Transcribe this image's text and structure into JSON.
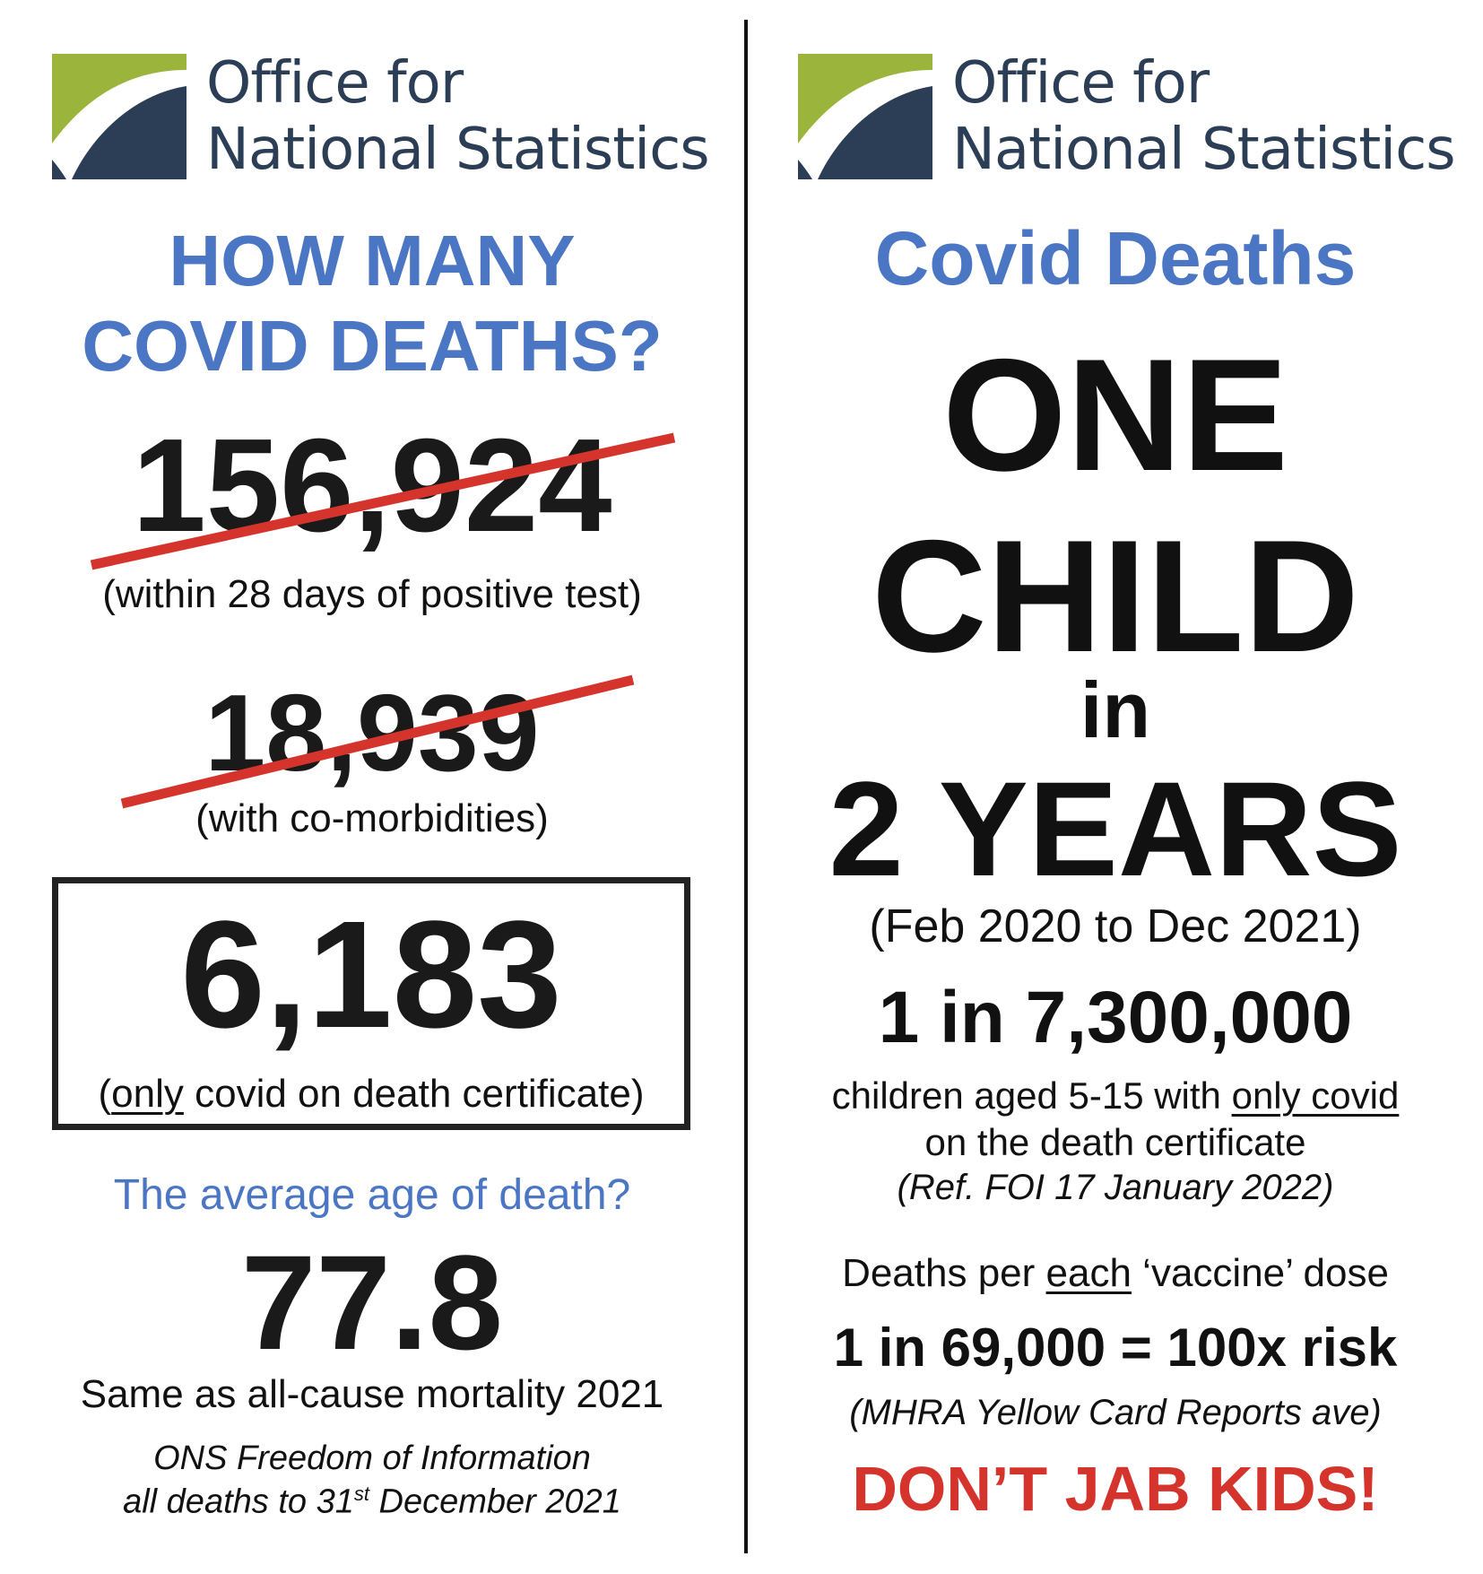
{
  "left": {
    "logo": {
      "line1": "Office for",
      "line2": "National Statistics"
    },
    "question_line1": "HOW MANY",
    "question_line2": "COVID DEATHS?",
    "stat1": {
      "value": "156,924",
      "caption": "(within 28 days of positive test)"
    },
    "stat2": {
      "value": "18,939",
      "caption": "(with co-morbidities)"
    },
    "stat3": {
      "value": "6,183",
      "caption_open": "(",
      "caption_underlined": "only",
      "caption_rest": " covid on death certificate)"
    },
    "age_question": "The average age of death?",
    "age_value": "77.8",
    "age_note": "Same as all-cause mortality 2021",
    "source_line1": "ONS Freedom of Information",
    "source_line2_pre": "all deaths to 31",
    "source_line2_sup": "st",
    "source_line2_post": " December 2021"
  },
  "right": {
    "logo": {
      "line1": "Office for",
      "line2": "National Statistics"
    },
    "title": "Covid Deaths",
    "big1": "ONE",
    "big2": "CHILD",
    "big3": "in",
    "big4": "2 YEARS",
    "period": "(Feb 2020 to Dec 2021)",
    "ratio": "1 in 7,300,000",
    "desc1_pre": "children aged 5-15 with ",
    "desc1_underlined": "only covid",
    "desc2": "on the death certificate",
    "ref": "(Ref. FOI 17 January 2022)",
    "vax_pre": "Deaths per ",
    "vax_underlined": "each",
    "vax_post": " ‘vaccine’ dose",
    "vax_ratio": "1 in 69,000 = 100x risk",
    "vax_source": "(MHRA Yellow Card Reports ave)",
    "slogan": "DON’T JAB KIDS!"
  },
  "colors": {
    "brand_navy": "#2c3e55",
    "brand_green": "#9bb43c",
    "heading_blue": "#4a76c4",
    "alert_red": "#d4342c"
  }
}
